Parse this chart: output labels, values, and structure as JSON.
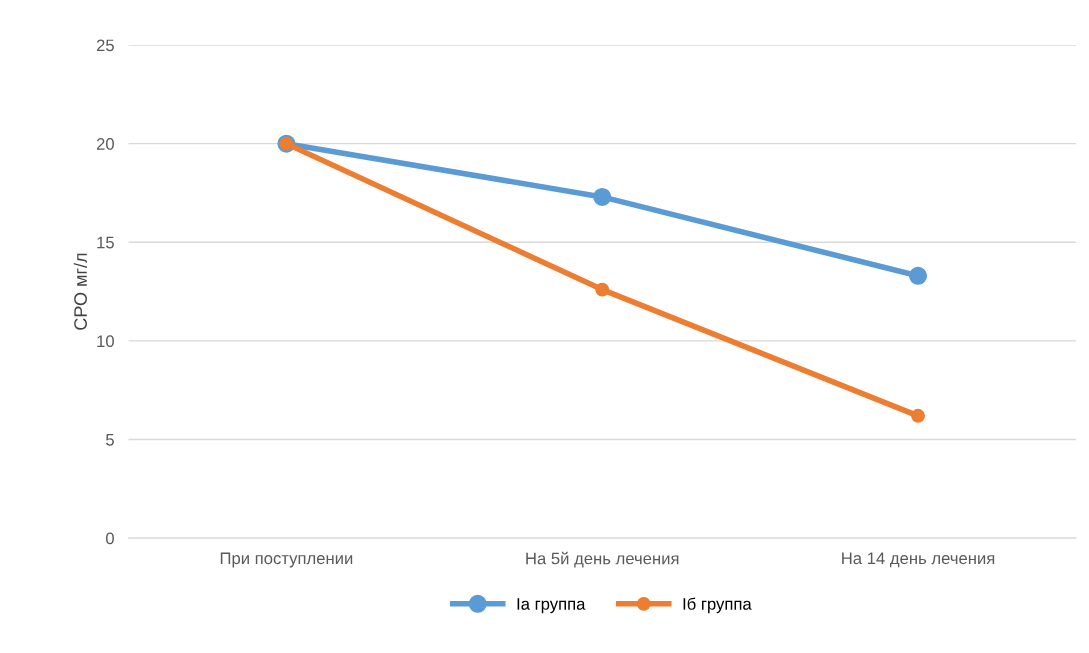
{
  "chart_data": {
    "type": "line",
    "ylabel": "СРО мг/л",
    "categories": [
      "При поступлении",
      "На 5й день лечения",
      "На 14 день лечения"
    ],
    "series": [
      {
        "name": "Ia группа",
        "color": "#5b9bd5",
        "values": [
          20,
          17.3,
          13.3
        ]
      },
      {
        "name": "Iб группа",
        "color": "#ed7d31",
        "values": [
          20,
          12.6,
          6.2
        ]
      }
    ],
    "ylim": [
      0,
      25
    ],
    "yticks": [
      0,
      5,
      10,
      15,
      20,
      25
    ],
    "grid": "y",
    "legend": "bottom",
    "marker": "circle",
    "line_style": "solid"
  }
}
